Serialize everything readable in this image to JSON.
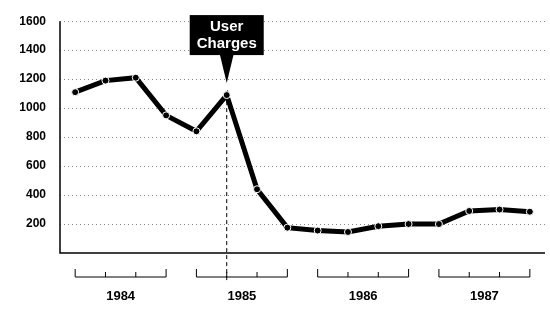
{
  "chart_data": {
    "type": "line",
    "categories": [
      "1984",
      "1984",
      "1984",
      "1984",
      "1985",
      "1985",
      "1985",
      "1985",
      "1986",
      "1986",
      "1986",
      "1986",
      "1987",
      "1987",
      "1987",
      "1987"
    ],
    "values": [
      1110,
      1190,
      1210,
      950,
      840,
      1090,
      440,
      175,
      155,
      145,
      185,
      200,
      200,
      290,
      300,
      285
    ],
    "color": "#000000",
    "ylim": [
      0,
      1600
    ],
    "yticks": [
      200,
      400,
      600,
      800,
      1000,
      1200,
      1400,
      1600
    ],
    "grid": true,
    "marker": "circle",
    "annotations": [
      {
        "text": "User Charges",
        "point": 5
      }
    ]
  }
}
